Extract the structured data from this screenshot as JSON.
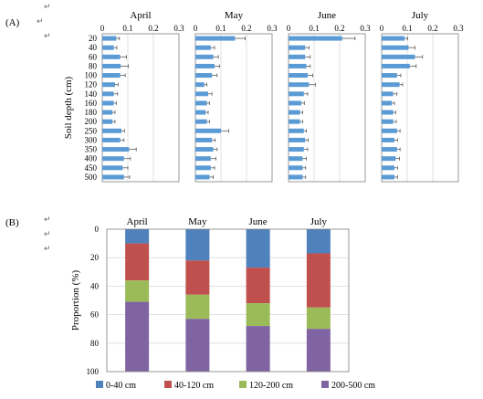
{
  "panel_labels": {
    "a": "(A)",
    "b": "(B)"
  },
  "return_mark": "↵",
  "chart_data": [
    {
      "type": "bar",
      "orientation": "horizontal",
      "panel": "(A)",
      "ylabel": "Soil depth (cm)",
      "categories": [
        "20",
        "40",
        "60",
        "80",
        "100",
        "120",
        "140",
        "160",
        "180",
        "200",
        "250",
        "300",
        "350",
        "400",
        "450",
        "500"
      ],
      "xlim": [
        0,
        0.3
      ],
      "xticks": [
        "0",
        "0.1",
        "0.2",
        "0.3"
      ],
      "grid": true,
      "error_bars": true,
      "facets": [
        {
          "title": "April",
          "values": [
            0.055,
            0.045,
            0.07,
            0.072,
            0.07,
            0.05,
            0.045,
            0.045,
            0.04,
            0.04,
            0.075,
            0.07,
            0.105,
            0.085,
            0.08,
            0.085
          ],
          "errors": [
            0.012,
            0.012,
            0.025,
            0.03,
            0.02,
            0.012,
            0.015,
            0.01,
            0.01,
            0.01,
            0.012,
            0.015,
            0.028,
            0.025,
            0.02,
            0.022
          ]
        },
        {
          "title": "May",
          "values": [
            0.155,
            0.06,
            0.07,
            0.075,
            0.065,
            0.035,
            0.05,
            0.045,
            0.04,
            0.045,
            0.1,
            0.065,
            0.07,
            0.06,
            0.06,
            0.055
          ],
          "errors": [
            0.04,
            0.015,
            0.02,
            0.02,
            0.02,
            0.01,
            0.015,
            0.01,
            0.01,
            0.01,
            0.03,
            0.012,
            0.015,
            0.02,
            0.015,
            0.015
          ]
        },
        {
          "title": "June",
          "values": [
            0.21,
            0.065,
            0.065,
            0.07,
            0.075,
            0.08,
            0.06,
            0.05,
            0.045,
            0.045,
            0.06,
            0.065,
            0.06,
            0.055,
            0.055,
            0.055
          ],
          "errors": [
            0.05,
            0.015,
            0.02,
            0.015,
            0.02,
            0.025,
            0.015,
            0.012,
            0.01,
            0.01,
            0.01,
            0.012,
            0.015,
            0.015,
            0.012,
            0.012
          ]
        },
        {
          "title": "July",
          "values": [
            0.09,
            0.105,
            0.13,
            0.11,
            0.06,
            0.07,
            0.045,
            0.04,
            0.045,
            0.045,
            0.06,
            0.05,
            0.06,
            0.055,
            0.05,
            0.05
          ],
          "errors": [
            0.012,
            0.025,
            0.03,
            0.025,
            0.015,
            0.012,
            0.015,
            0.01,
            0.01,
            0.012,
            0.012,
            0.012,
            0.012,
            0.015,
            0.012,
            0.012
          ]
        }
      ]
    },
    {
      "type": "bar",
      "stacked": true,
      "panel": "(B)",
      "ylabel": "Proportion (%)",
      "ylim": [
        0,
        100
      ],
      "yticks": [
        "0",
        "20",
        "40",
        "60",
        "80",
        "100"
      ],
      "y_inverted": true,
      "categories": [
        "April",
        "May",
        "June",
        "July"
      ],
      "legend_position": "bottom",
      "series": [
        {
          "name": "0-40 cm",
          "color": "#4F81BD",
          "values": [
            10,
            22,
            27,
            17
          ]
        },
        {
          "name": "40-120 cm",
          "color": "#C0504D",
          "values": [
            26,
            24,
            25,
            38
          ]
        },
        {
          "name": "120-200 cm",
          "color": "#9BBB59",
          "values": [
            15,
            17,
            16,
            15
          ]
        },
        {
          "name": "200-500 cm",
          "color": "#8064A2",
          "values": [
            49,
            37,
            32,
            30
          ]
        }
      ]
    }
  ]
}
